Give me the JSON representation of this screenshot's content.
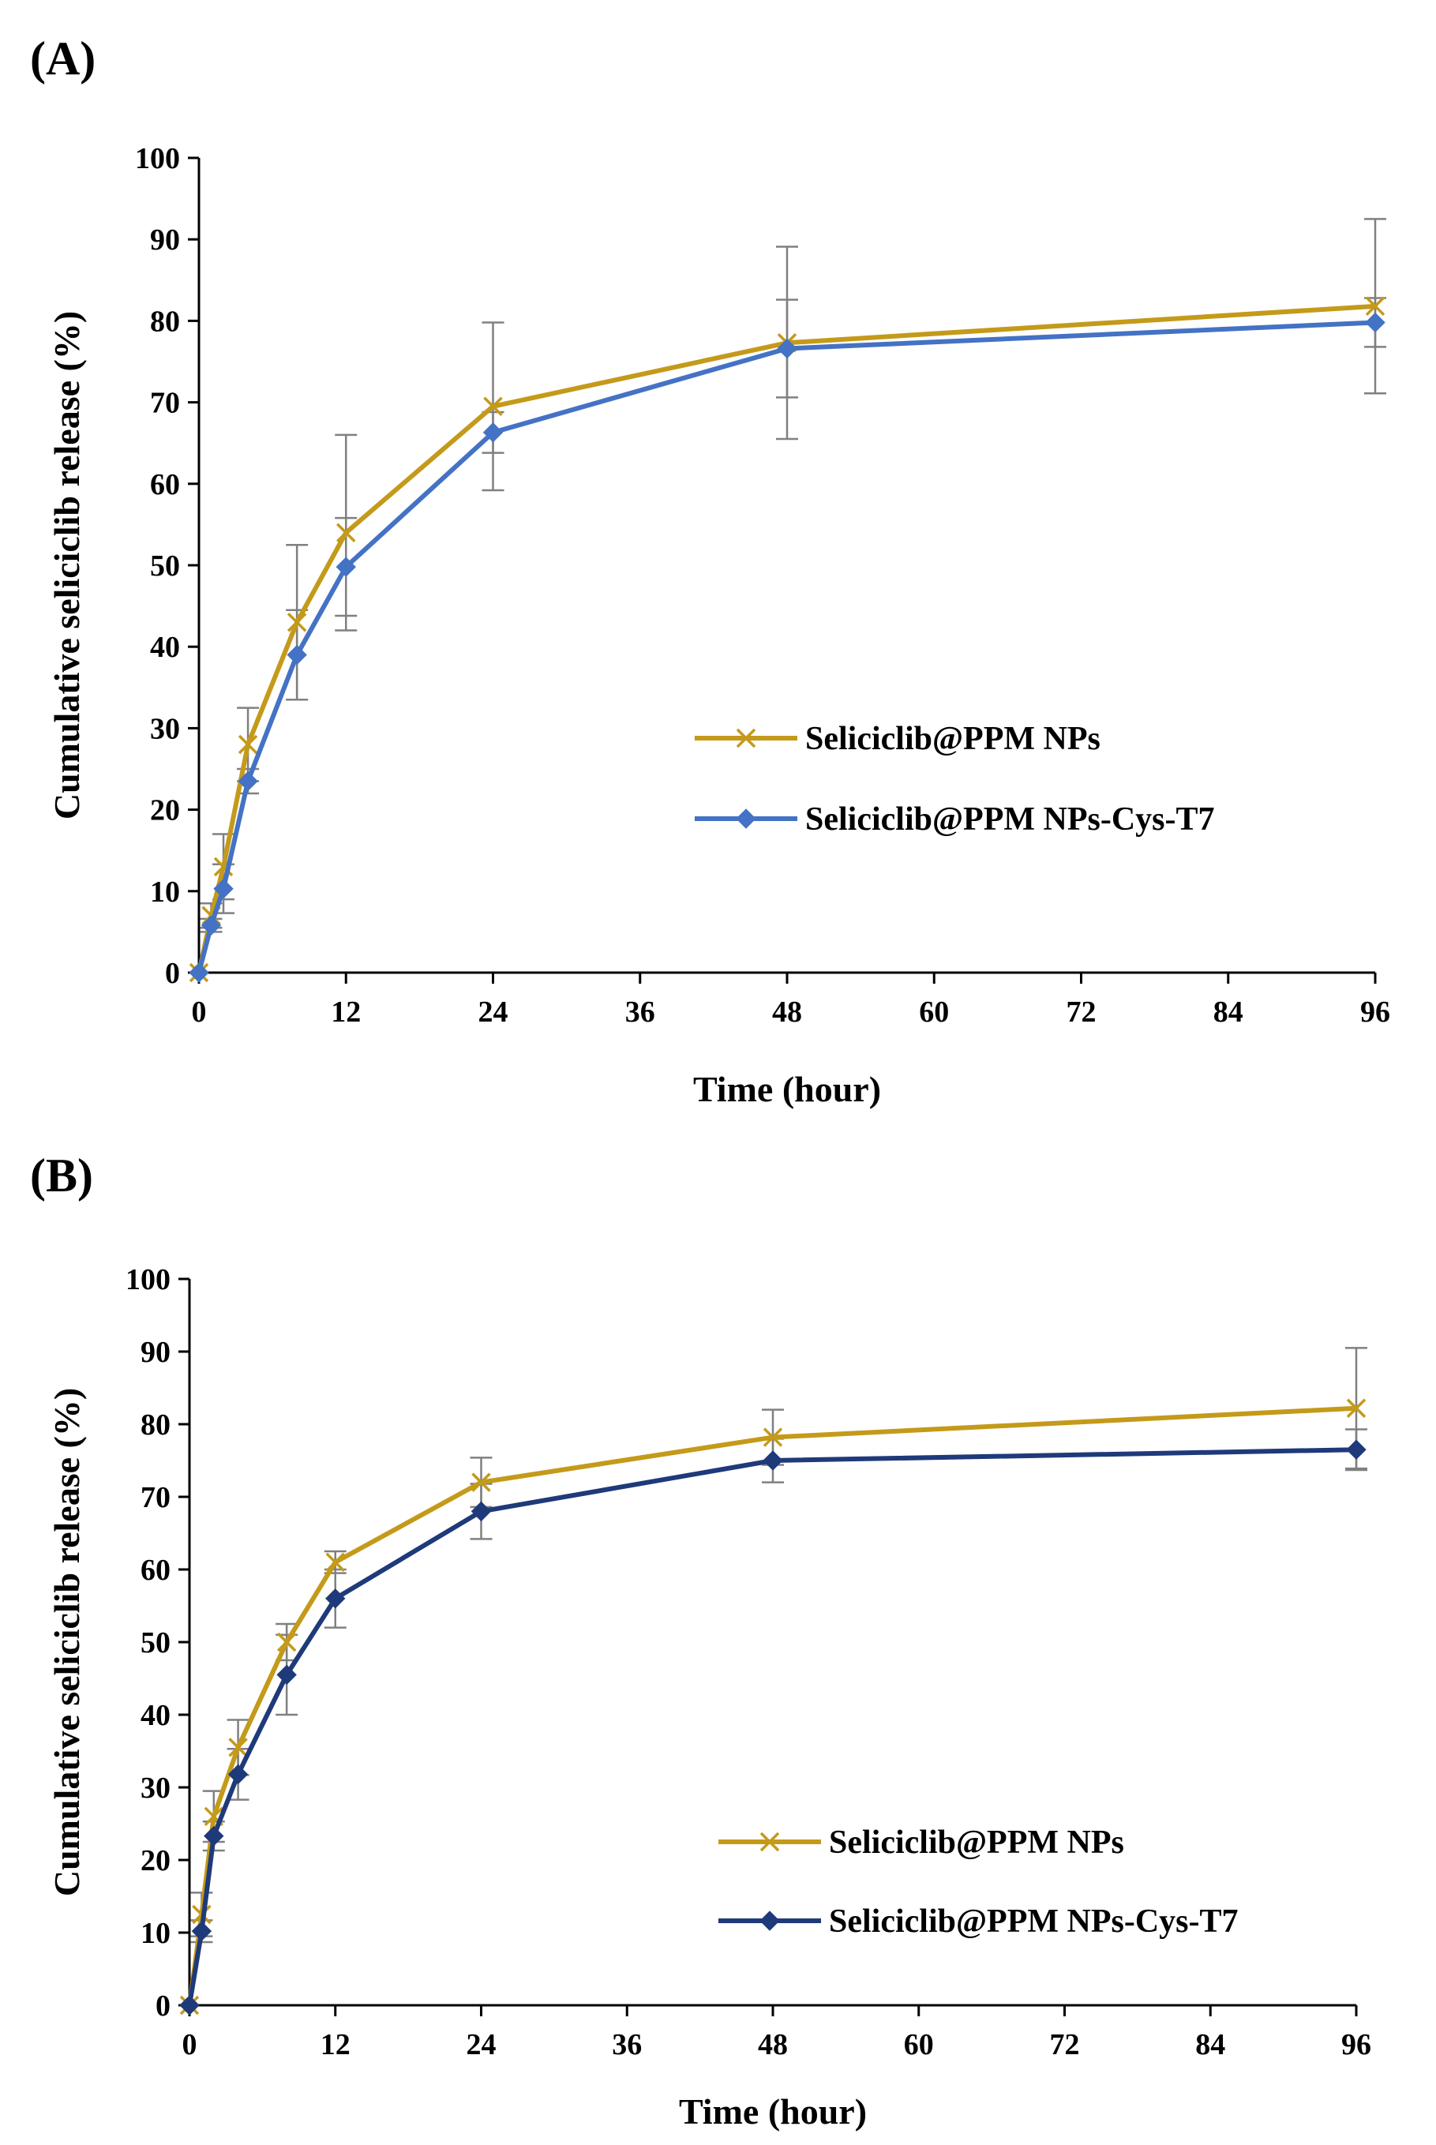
{
  "panels": [
    {
      "label": "(A)"
    },
    {
      "label": "(B)"
    }
  ],
  "chart_data": [
    {
      "type": "line",
      "title": "",
      "xlabel": "Time (hour)",
      "ylabel": "Cumulative seliciclib release (%)",
      "xlim": [
        0,
        96
      ],
      "ylim": [
        0,
        100
      ],
      "xticks": [
        0,
        12,
        24,
        36,
        48,
        60,
        72,
        84,
        96
      ],
      "yticks": [
        0,
        10,
        20,
        30,
        40,
        50,
        60,
        70,
        80,
        90,
        100
      ],
      "x": [
        0,
        1,
        2,
        4,
        8,
        12,
        24,
        48,
        96
      ],
      "legend_position": "center-right",
      "series": [
        {
          "name": "Seliciclib@PPM NPs",
          "marker": "x",
          "color": "#C49A1A",
          "values": [
            0,
            7,
            13,
            28,
            43,
            54,
            69.5,
            77.3,
            81.8
          ],
          "errors": [
            0,
            1.5,
            4,
            4.5,
            9.5,
            12,
            10.3,
            11.8,
            10.7
          ]
        },
        {
          "name": "Seliciclib@PPM NPs-Cys-T7",
          "marker": "diamond",
          "color": "#4472C4",
          "values": [
            0,
            5.8,
            10.3,
            23.5,
            39,
            49.8,
            66.3,
            76.6,
            79.8
          ],
          "errors": [
            0,
            0.8,
            3,
            1.5,
            5.5,
            6,
            2.5,
            6,
            3
          ]
        }
      ]
    },
    {
      "type": "line",
      "title": "",
      "xlabel": "Time (hour)",
      "ylabel": "Cumulative seliciclib release (%)",
      "xlim": [
        0,
        96
      ],
      "ylim": [
        0,
        100
      ],
      "xticks": [
        0,
        12,
        24,
        36,
        48,
        60,
        72,
        84,
        96
      ],
      "yticks": [
        0,
        10,
        20,
        30,
        40,
        50,
        60,
        70,
        80,
        90,
        100
      ],
      "x": [
        0,
        1,
        2,
        4,
        8,
        12,
        24,
        48,
        96
      ],
      "legend_position": "bottom-right",
      "series": [
        {
          "name": "Seliciclib@PPM NPs",
          "marker": "x",
          "color": "#C49A1A",
          "values": [
            0,
            12.5,
            26,
            35.5,
            50,
            61,
            72,
            78.2,
            82.2
          ],
          "errors": [
            0,
            3,
            3.5,
            3.8,
            2.5,
            1.5,
            3.4,
            3.8,
            8.3
          ]
        },
        {
          "name": "Seliciclib@PPM NPs-Cys-T7",
          "marker": "diamond",
          "color": "#1F3A7A",
          "values": [
            0,
            10.2,
            23.3,
            31.8,
            45.5,
            56,
            68,
            75,
            76.5
          ],
          "errors": [
            0,
            1.5,
            2,
            3.5,
            5.5,
            4,
            3.8,
            3,
            2.8
          ]
        }
      ]
    }
  ]
}
